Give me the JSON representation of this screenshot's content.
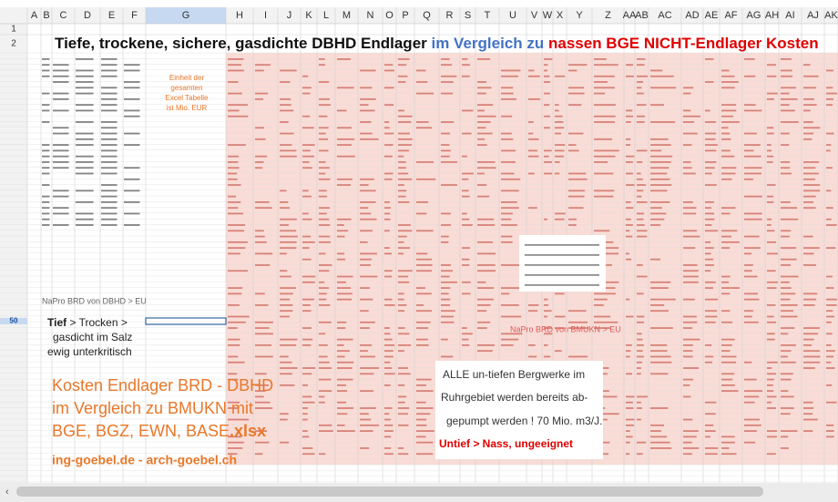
{
  "sheet": {
    "columns": [
      "A",
      "B",
      "C",
      "D",
      "E",
      "F",
      "G",
      "H",
      "I",
      "J",
      "K",
      "L",
      "M",
      "N",
      "O",
      "P",
      "Q",
      "R",
      "S",
      "T",
      "U",
      "V",
      "W",
      "X",
      "Y",
      "Z",
      "AA",
      "AB",
      "AC",
      "AD",
      "AE",
      "AF",
      "AG",
      "AH",
      "AI",
      "AJ",
      "AK"
    ],
    "rows": [
      "1",
      "2",
      "50"
    ],
    "title": {
      "part1": "Tiefe, trockene, sichere, gasdichte DBHD Endlager ",
      "part2": "im Vergleich zu ",
      "part3": "nassen BGE NICHT-Endlager Kosten"
    },
    "unit_note": [
      "Einheit der",
      "gesamten",
      "Excel Tabelle",
      "ist Mio. EUR"
    ],
    "napro_dbhd": "NaPro BRD von DBHD > EU",
    "deep_note": {
      "bold": "Tief",
      "line1": " > Trocken >",
      "line2": "gasdicht im Salz",
      "line3": "ewig unterkritisch"
    },
    "file_note": {
      "line1": "Kosten Endlager BRD - DBHD",
      "line2": "im Vergleich zu BMUKN mit",
      "line3": "BGE, BGZ, EWN, BASE",
      "ext": ".xlsx",
      "web": "ing-goebel.de - arch-goebel.ch"
    },
    "napro_bmukn": "NaPro BRD von BMUKN > EU",
    "ruhr_note": {
      "line1": "ALLE un-tiefen Bergwerke im",
      "line2": "Ruhrgebiet werden bereits ab-",
      "line3": "gepumpt werden ! 70 Mio. m3/J.",
      "verdict": "Untief > Nass, ungeeignet"
    }
  }
}
